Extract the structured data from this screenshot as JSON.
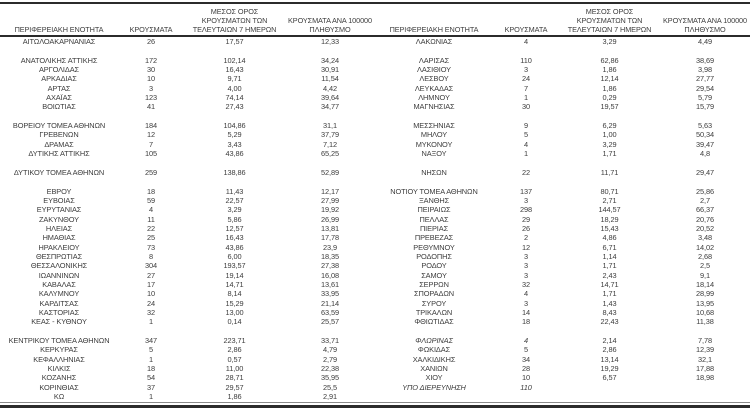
{
  "document": {
    "kind": "regional-cases-table",
    "decimal_separator": ",",
    "text_color": "#3d3d3d",
    "rule_color": "#2b2b2b"
  },
  "headers": {
    "region": {
      "lines": [
        "ΠΕΡΙΦΕΡΕΙΑΚΗ ΕΝΟΤΗΤΑ"
      ]
    },
    "cases": {
      "lines": [
        "ΚΡΟΥΣΜΑΤΑ"
      ]
    },
    "avg7": {
      "lines": [
        "ΜΕΣΟΣ ΟΡΟΣ",
        "ΚΡΟΥΣΜΑΤΩΝ ΤΩΝ",
        "ΤΕΛΕΥΤΑΙΩΝ 7 ΗΜΕΡΩΝ"
      ]
    },
    "per100k": {
      "lines": [
        "ΚΡΟΥΣΜΑΤΑ ΑΝΑ 100000",
        "ΠΛΗΘΥΣΜΟ"
      ]
    }
  },
  "tables": [
    {
      "side": "left",
      "groups": [
        [
          {
            "name": "ΑΙΤΩΛΟΑΚΑΡΝΑΝΙΑΣ",
            "cases": "26",
            "avg7": "17,57",
            "per100k": "12,33"
          }
        ],
        [
          {
            "name": "ΑΝΑΤΟΛΙΚΗΣ ΑΤΤΙΚΗΣ",
            "cases": "172",
            "avg7": "102,14",
            "per100k": "34,24"
          },
          {
            "name": "ΑΡΓΟΛΙΔΑΣ",
            "cases": "30",
            "avg7": "16,43",
            "per100k": "30,91"
          },
          {
            "name": "ΑΡΚΑΔΙΑΣ",
            "cases": "10",
            "avg7": "9,71",
            "per100k": "11,54"
          },
          {
            "name": "ΑΡΤΑΣ",
            "cases": "3",
            "avg7": "4,00",
            "per100k": "4,42"
          },
          {
            "name": "ΑΧΑΪΑΣ",
            "cases": "123",
            "avg7": "74,14",
            "per100k": "39,64"
          },
          {
            "name": "ΒΟΙΩΤΙΑΣ",
            "cases": "41",
            "avg7": "27,43",
            "per100k": "34,77"
          }
        ],
        [
          {
            "name": "ΒΟΡΕΙΟΥ ΤΟΜΕΑ ΑΘΗΝΩΝ",
            "cases": "184",
            "avg7": "104,86",
            "per100k": "31,1"
          },
          {
            "name": "ΓΡΕΒΕΝΩΝ",
            "cases": "12",
            "avg7": "5,29",
            "per100k": "37,79"
          },
          {
            "name": "ΔΡΑΜΑΣ",
            "cases": "7",
            "avg7": "3,43",
            "per100k": "7,12"
          },
          {
            "name": "ΔΥΤΙΚΗΣ ΑΤΤΙΚΗΣ",
            "cases": "105",
            "avg7": "43,86",
            "per100k": "65,25"
          }
        ],
        [
          {
            "name": "ΔΥΤΙΚΟΥ ΤΟΜΕΑ ΑΘΗΝΩΝ",
            "cases": "259",
            "avg7": "138,86",
            "per100k": "52,89"
          }
        ],
        [
          {
            "name": "ΕΒΡΟΥ",
            "cases": "18",
            "avg7": "11,43",
            "per100k": "12,17"
          },
          {
            "name": "ΕΥΒΟΙΑΣ",
            "cases": "59",
            "avg7": "22,57",
            "per100k": "27,99"
          },
          {
            "name": "ΕΥΡΥΤΑΝΙΑΣ",
            "cases": "4",
            "avg7": "3,29",
            "per100k": "19,92"
          },
          {
            "name": "ΖΑΚΥΝΘΟΥ",
            "cases": "11",
            "avg7": "5,86",
            "per100k": "26,99"
          },
          {
            "name": "ΗΛΕΙΑΣ",
            "cases": "22",
            "avg7": "12,57",
            "per100k": "13,81"
          },
          {
            "name": "ΗΜΑΘΙΑΣ",
            "cases": "25",
            "avg7": "16,43",
            "per100k": "17,78"
          },
          {
            "name": "ΗΡΑΚΛΕΙΟΥ",
            "cases": "73",
            "avg7": "43,86",
            "per100k": "23,9"
          },
          {
            "name": "ΘΕΣΠΡΩΤΙΑΣ",
            "cases": "8",
            "avg7": "6,00",
            "per100k": "18,35"
          },
          {
            "name": "ΘΕΣΣΑΛΟΝΙΚΗΣ",
            "cases": "304",
            "avg7": "193,57",
            "per100k": "27,38"
          },
          {
            "name": "ΙΩΑΝΝΙΝΩΝ",
            "cases": "27",
            "avg7": "19,14",
            "per100k": "16,08"
          },
          {
            "name": "ΚΑΒΑΛΑΣ",
            "cases": "17",
            "avg7": "14,71",
            "per100k": "13,61"
          },
          {
            "name": "ΚΑΛΥΜΝΟΥ",
            "cases": "10",
            "avg7": "8,14",
            "per100k": "33,95"
          },
          {
            "name": "ΚΑΡΔΙΤΣΑΣ",
            "cases": "24",
            "avg7": "15,29",
            "per100k": "21,14"
          },
          {
            "name": "ΚΑΣΤΟΡΙΑΣ",
            "cases": "32",
            "avg7": "13,00",
            "per100k": "63,59"
          },
          {
            "name": "ΚΕΑΣ - ΚΥΘΝΟΥ",
            "cases": "1",
            "avg7": "0,14",
            "per100k": "25,57"
          }
        ],
        [
          {
            "name": "ΚΕΝΤΡΙΚΟΥ ΤΟΜΕΑ ΑΘΗΝΩΝ",
            "cases": "347",
            "avg7": "223,71",
            "per100k": "33,71"
          },
          {
            "name": "ΚΕΡΚΥΡΑΣ",
            "cases": "5",
            "avg7": "2,86",
            "per100k": "4,79"
          },
          {
            "name": "ΚΕΦΑΛΛΗΝΙΑΣ",
            "cases": "1",
            "avg7": "0,57",
            "per100k": "2,79"
          },
          {
            "name": "ΚΙΛΚΙΣ",
            "cases": "18",
            "avg7": "11,00",
            "per100k": "22,38"
          },
          {
            "name": "ΚΟΖΑΝΗΣ",
            "cases": "54",
            "avg7": "28,71",
            "per100k": "35,95"
          },
          {
            "name": "ΚΟΡΙΝΘΙΑΣ",
            "cases": "37",
            "avg7": "29,57",
            "per100k": "25,5"
          },
          {
            "name": "ΚΩ",
            "cases": "1",
            "avg7": "1,86",
            "per100k": "2,91"
          }
        ]
      ]
    },
    {
      "side": "right",
      "groups": [
        [
          {
            "name": "ΛΑΚΩΝΙΑΣ",
            "cases": "4",
            "avg7": "3,29",
            "per100k": "4,49"
          }
        ],
        [
          {
            "name": "ΛΑΡΙΣΑΣ",
            "cases": "110",
            "avg7": "62,86",
            "per100k": "38,69"
          },
          {
            "name": "ΛΑΣΙΘΙΟΥ",
            "cases": "3",
            "avg7": "1,86",
            "per100k": "3,98"
          },
          {
            "name": "ΛΕΣΒΟΥ",
            "cases": "24",
            "avg7": "12,14",
            "per100k": "27,77"
          },
          {
            "name": "ΛΕΥΚΑΔΑΣ",
            "cases": "7",
            "avg7": "1,86",
            "per100k": "29,54"
          },
          {
            "name": "ΛΗΜΝΟΥ",
            "cases": "1",
            "avg7": "0,29",
            "per100k": "5,79"
          },
          {
            "name": "ΜΑΓΝΗΣΙΑΣ",
            "cases": "30",
            "avg7": "19,57",
            "per100k": "15,79"
          }
        ],
        [
          {
            "name": "ΜΕΣΣΗΝΙΑΣ",
            "cases": "9",
            "avg7": "6,29",
            "per100k": "5,63"
          },
          {
            "name": "ΜΗΛΟΥ",
            "cases": "5",
            "avg7": "1,00",
            "per100k": "50,34"
          },
          {
            "name": "ΜΥΚΟΝΟΥ",
            "cases": "4",
            "avg7": "3,29",
            "per100k": "39,47"
          },
          {
            "name": "ΝΑΞΟΥ",
            "cases": "1",
            "avg7": "1,71",
            "per100k": "4,8"
          }
        ],
        [
          {
            "name": "ΝΗΣΩΝ",
            "cases": "22",
            "avg7": "11,71",
            "per100k": "29,47"
          }
        ],
        [
          {
            "name": "ΝΟΤΙΟΥ ΤΟΜΕΑ ΑΘΗΝΩΝ",
            "cases": "137",
            "avg7": "80,71",
            "per100k": "25,86"
          },
          {
            "name": "ΞΑΝΘΗΣ",
            "cases": "3",
            "avg7": "2,71",
            "per100k": "2,7"
          },
          {
            "name": "ΠΕΙΡΑΙΩΣ",
            "cases": "298",
            "avg7": "144,57",
            "per100k": "66,37"
          },
          {
            "name": "ΠΕΛΛΑΣ",
            "cases": "29",
            "avg7": "18,29",
            "per100k": "20,76"
          },
          {
            "name": "ΠΙΕΡΙΑΣ",
            "cases": "26",
            "avg7": "15,43",
            "per100k": "20,52"
          },
          {
            "name": "ΠΡΕΒΕΖΑΣ",
            "cases": "2",
            "avg7": "4,86",
            "per100k": "3,48"
          },
          {
            "name": "ΡΕΘΥΜΝΟΥ",
            "cases": "12",
            "avg7": "6,71",
            "per100k": "14,02"
          },
          {
            "name": "ΡΟΔΟΠΗΣ",
            "cases": "3",
            "avg7": "1,14",
            "per100k": "2,68"
          },
          {
            "name": "ΡΟΔΟΥ",
            "cases": "3",
            "avg7": "1,71",
            "per100k": "2,5"
          },
          {
            "name": "ΣΑΜΟΥ",
            "cases": "3",
            "avg7": "2,43",
            "per100k": "9,1"
          },
          {
            "name": "ΣΕΡΡΩΝ",
            "cases": "32",
            "avg7": "14,71",
            "per100k": "18,14"
          },
          {
            "name": "ΣΠΟΡΑΔΩΝ",
            "cases": "4",
            "avg7": "1,71",
            "per100k": "28,99"
          },
          {
            "name": "ΣΥΡΟΥ",
            "cases": "3",
            "avg7": "1,43",
            "per100k": "13,95"
          },
          {
            "name": "ΤΡΙΚΑΛΩΝ",
            "cases": "14",
            "avg7": "8,43",
            "per100k": "10,68"
          },
          {
            "name": "ΦΘΙΩΤΙΔΑΣ",
            "cases": "18",
            "avg7": "22,43",
            "per100k": "11,38"
          }
        ],
        [
          {
            "name": "ΦΛΩΡΙΝΑΣ",
            "cases": "4",
            "avg7": "2,14",
            "per100k": "7,78",
            "italic": true
          },
          {
            "name": "ΦΩΚΙΔΑΣ",
            "cases": "5",
            "avg7": "2,86",
            "per100k": "12,39"
          },
          {
            "name": "ΧΑΛΚΙΔΙΚΗΣ",
            "cases": "34",
            "avg7": "13,14",
            "per100k": "32,1"
          },
          {
            "name": "ΧΑΝΙΩΝ",
            "cases": "28",
            "avg7": "19,29",
            "per100k": "17,88"
          },
          {
            "name": "ΧΙΟΥ",
            "cases": "10",
            "avg7": "6,57",
            "per100k": "18,98"
          },
          {
            "name": "ΥΠΟ ΔΙΕΡΕΥΝΗΣΗ",
            "cases": "110",
            "avg7": "",
            "per100k": "",
            "italic": true
          }
        ]
      ]
    }
  ]
}
